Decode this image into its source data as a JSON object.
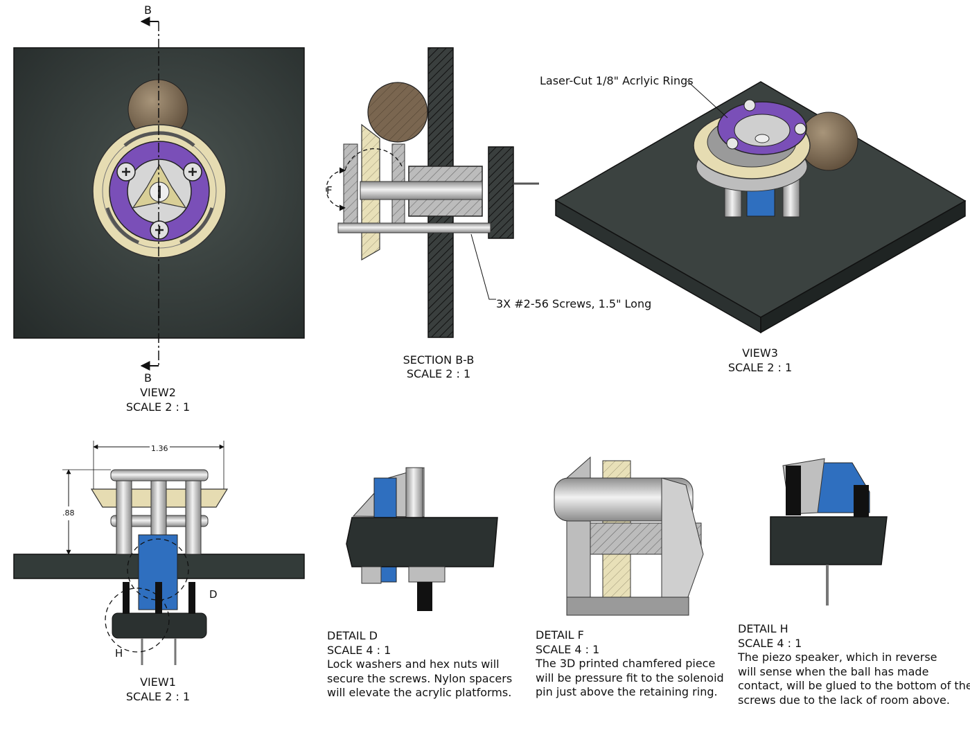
{
  "section_markers": {
    "top": "B",
    "bottom": "B"
  },
  "view2": {
    "name": "VIEW2",
    "scale": "SCALE 2 : 1"
  },
  "section_bb": {
    "name": "SECTION B-B",
    "scale": "SCALE 2 : 1",
    "detail_marker": "F"
  },
  "view3": {
    "name": "VIEW3",
    "scale": "SCALE 2 : 1"
  },
  "callouts": {
    "rings": "Laser-Cut 1/8\" Acrlyic Rings",
    "screws": "3X #2-56 Screws, 1.5\" Long"
  },
  "view1": {
    "name": "VIEW1",
    "scale": "SCALE 2 : 1",
    "width_dim": "1.36",
    "height_dim": ".88",
    "detail_markers": {
      "d": "D",
      "h": "H"
    }
  },
  "detail_d": {
    "name": "DETAIL  D",
    "scale": "SCALE 4 : 1",
    "lines": [
      "Lock washers and hex nuts will",
      "secure the screws. Nylon spacers",
      "will elevate the acrylic platforms."
    ]
  },
  "detail_f": {
    "name": "DETAIL  F",
    "scale": "SCALE 4 : 1",
    "lines": [
      "The 3D printed chamfered piece",
      "will be pressure fit to the solenoid",
      "pin just above the retaining ring."
    ]
  },
  "detail_h": {
    "name": "DETAIL  H",
    "scale": "SCALE 4 : 1",
    "lines": [
      "The piezo speaker, which in reverse",
      "will sense when the ball has made",
      "contact, will be glued to the bottom of the",
      "screws due to the lack of room above."
    ]
  },
  "colors": {
    "board": "#333b39",
    "acrylic_purple": "#7a4fb8",
    "cream_plate": "#e6dcb2",
    "steel": "#c8c8c8",
    "piezo_blue": "#2f6fbf",
    "ball": "#7f6a52"
  }
}
